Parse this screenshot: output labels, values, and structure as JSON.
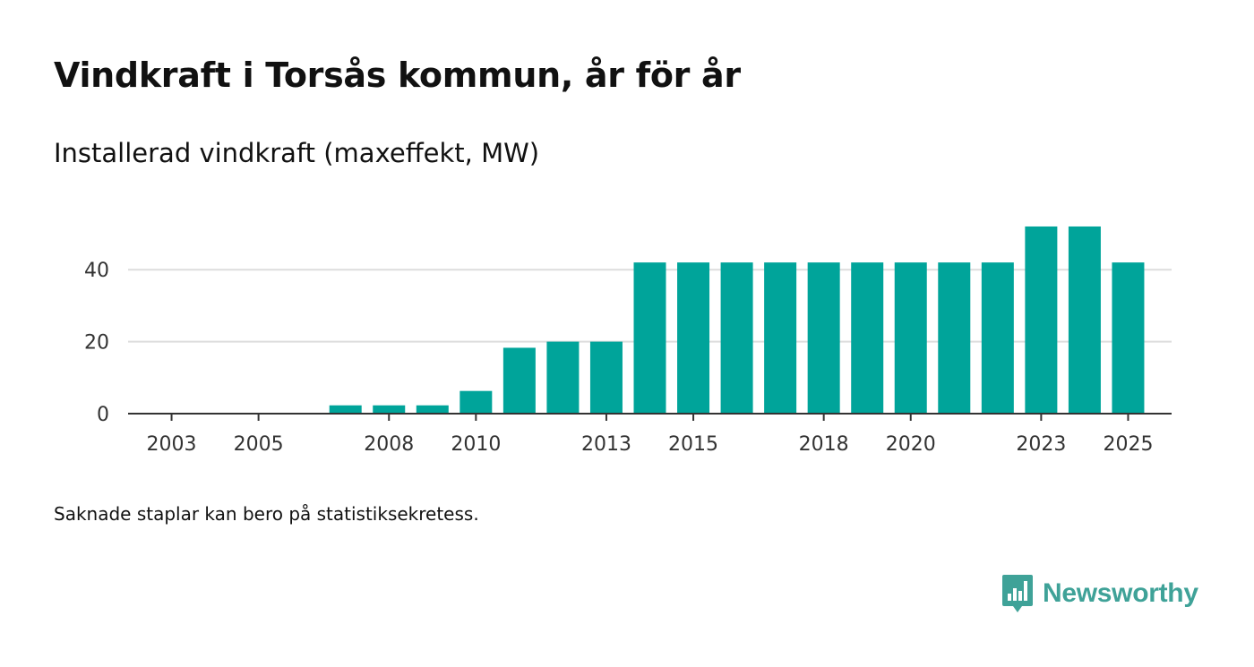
{
  "page": {
    "title": "Vindkraft i Torsås kommun, år för år",
    "subtitle": "Installerad vindkraft (maxeffekt, MW)",
    "footnote": "Saknade staplar kan bero på statistiksekretess.",
    "brand": "Newsworthy"
  },
  "colors": {
    "bar": "#00a49a",
    "grid": "#dddddd",
    "axis": "#333333",
    "text": "#111111",
    "tick_text": "#333333",
    "brand": "#3fa298"
  },
  "icons": {
    "brand_logo": "bar-chart-speech-bubble-icon"
  },
  "chart_data": {
    "type": "bar",
    "title": "Vindkraft i Torsås kommun, år för år",
    "subtitle": "Installerad vindkraft (maxeffekt, MW)",
    "xlabel": "",
    "ylabel": "",
    "ylim": [
      0,
      55
    ],
    "yticks": [
      0,
      20,
      40
    ],
    "grid": true,
    "legend": "none",
    "categories": [
      2003,
      2004,
      2005,
      2006,
      2007,
      2008,
      2009,
      2010,
      2011,
      2012,
      2013,
      2014,
      2015,
      2016,
      2017,
      2018,
      2019,
      2020,
      2021,
      2022,
      2023,
      2024,
      2025
    ],
    "xtick_labels": [
      2003,
      2005,
      2008,
      2010,
      2013,
      2015,
      2018,
      2020,
      2023,
      2025
    ],
    "values": [
      0,
      0,
      0,
      0,
      2.3,
      2.3,
      2.3,
      6.3,
      18.3,
      20,
      20,
      42,
      42,
      42,
      42,
      42,
      42,
      42,
      42,
      42,
      52,
      52,
      42
    ]
  }
}
